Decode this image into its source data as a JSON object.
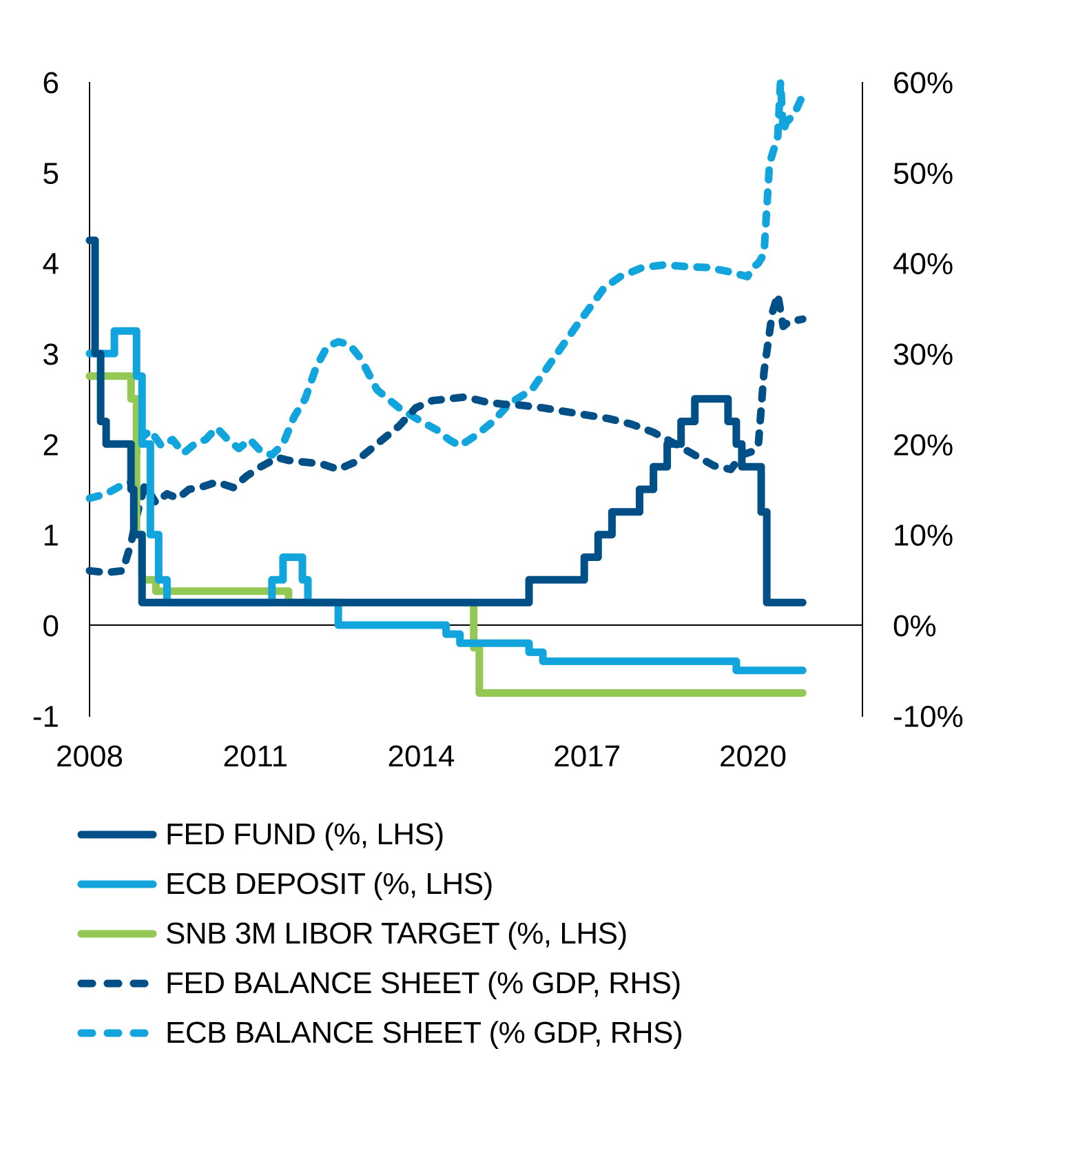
{
  "chart_data": {
    "type": "line",
    "title": "",
    "xlabel": "",
    "ylabel_left": "",
    "ylabel_right": "",
    "x_ticks": [
      "2008",
      "2011",
      "2014",
      "2017",
      "2020"
    ],
    "x_tick_values": [
      2008,
      2011,
      2014,
      2017,
      2020
    ],
    "xlim": [
      2008,
      2022
    ],
    "y_left_ticks": [
      "6",
      "5",
      "4",
      "3",
      "2",
      "1",
      "0",
      "-1"
    ],
    "y_left_tick_values": [
      6,
      5,
      4,
      3,
      2,
      1,
      0,
      -1
    ],
    "ylim_left": [
      -1,
      6
    ],
    "y_right_ticks": [
      "60%",
      "50%",
      "40%",
      "30%",
      "20%",
      "10%",
      "0%",
      "-10%"
    ],
    "y_right_tick_values": [
      60,
      50,
      40,
      30,
      20,
      10,
      0,
      -10
    ],
    "ylim_right": [
      -10,
      60
    ],
    "grid": false,
    "zero_line": true,
    "legend_position": "bottom-left",
    "series": [
      {
        "name": "FED FUND (%, LHS)",
        "axis": "left",
        "style": "solid",
        "step": true,
        "color": "#004f87",
        "x": [
          2008.0,
          2008.1,
          2008.2,
          2008.3,
          2008.35,
          2008.75,
          2008.8,
          2008.95,
          2015.95,
          2016.95,
          2017.2,
          2017.45,
          2017.95,
          2018.2,
          2018.45,
          2018.7,
          2018.95,
          2019.55,
          2019.7,
          2019.8,
          2020.15,
          2020.25,
          2020.9
        ],
        "y": [
          4.25,
          3.0,
          2.25,
          2.0,
          2.0,
          1.5,
          1.0,
          0.25,
          0.5,
          0.75,
          1.0,
          1.25,
          1.5,
          1.75,
          2.0,
          2.25,
          2.5,
          2.25,
          2.0,
          1.75,
          1.25,
          0.25,
          0.25
        ]
      },
      {
        "name": "ECB DEPOSIT (%, LHS)",
        "axis": "left",
        "style": "solid",
        "step": true,
        "color": "#12a4dd",
        "x": [
          2008.0,
          2008.45,
          2008.85,
          2008.95,
          2009.1,
          2009.25,
          2009.4,
          2011.3,
          2011.5,
          2011.85,
          2011.95,
          2012.5,
          2014.45,
          2014.7,
          2015.95,
          2016.2,
          2019.7,
          2020.9
        ],
        "y": [
          3.0,
          3.25,
          2.75,
          2.0,
          1.0,
          0.5,
          0.25,
          0.5,
          0.75,
          0.5,
          0.25,
          0.0,
          -0.1,
          -0.2,
          -0.3,
          -0.4,
          -0.5,
          -0.5
        ]
      },
      {
        "name": "SNB 3M LIBOR TARGET (%, LHS)",
        "axis": "left",
        "style": "solid",
        "step": true,
        "color": "#92c853",
        "x": [
          2008.0,
          2008.75,
          2008.85,
          2008.95,
          2009.2,
          2011.6,
          2014.95,
          2015.05,
          2020.9
        ],
        "y": [
          2.75,
          2.5,
          1.0,
          0.5,
          0.375,
          0.25,
          -0.25,
          -0.75,
          -0.75
        ]
      },
      {
        "name": "FED BALANCE SHEET (% GDP, RHS)",
        "axis": "right",
        "style": "dashed",
        "step": false,
        "color": "#004f87",
        "x": [
          2008.0,
          2008.3,
          2008.6,
          2008.75,
          2008.85,
          2009.0,
          2009.2,
          2009.4,
          2009.6,
          2009.8,
          2010.0,
          2010.3,
          2010.6,
          2010.85,
          2011.1,
          2011.4,
          2011.6,
          2011.9,
          2012.2,
          2012.5,
          2012.8,
          2013.2,
          2013.6,
          2013.9,
          2014.2,
          2014.5,
          2014.8,
          2015.2,
          2015.5,
          2015.8,
          2016.2,
          2016.6,
          2017.0,
          2017.4,
          2017.8,
          2018.2,
          2018.6,
          2019.0,
          2019.3,
          2019.6,
          2019.8,
          2020.0,
          2020.1,
          2020.2,
          2020.35,
          2020.45,
          2020.55,
          2020.65,
          2020.9
        ],
        "y": [
          6.0,
          5.8,
          6.0,
          9.0,
          12.0,
          15.5,
          13.5,
          14.5,
          14.0,
          15.0,
          15.2,
          15.8,
          15.2,
          16.5,
          17.5,
          18.5,
          18.2,
          18.0,
          17.8,
          17.2,
          18.0,
          20.0,
          22.0,
          24.0,
          24.8,
          25.0,
          25.2,
          24.6,
          24.4,
          24.3,
          24.0,
          23.6,
          23.2,
          22.8,
          22.2,
          21.3,
          20.0,
          18.6,
          17.6,
          17.2,
          18.8,
          19.2,
          20.0,
          28.0,
          34.5,
          36.5,
          33.0,
          33.5,
          33.8
        ]
      },
      {
        "name": "ECB BALANCE SHEET (% GDP, RHS)",
        "axis": "right",
        "style": "dashed",
        "step": false,
        "color": "#12a4dd",
        "x": [
          2008.0,
          2008.3,
          2008.6,
          2008.75,
          2008.9,
          2009.1,
          2009.3,
          2009.5,
          2009.7,
          2009.9,
          2010.1,
          2010.3,
          2010.5,
          2010.7,
          2010.9,
          2011.1,
          2011.3,
          2011.5,
          2011.7,
          2011.9,
          2012.1,
          2012.3,
          2012.5,
          2012.7,
          2012.9,
          2013.2,
          2013.6,
          2014.0,
          2014.3,
          2014.5,
          2014.7,
          2015.0,
          2015.3,
          2015.6,
          2016.0,
          2016.4,
          2016.8,
          2017.1,
          2017.3,
          2017.6,
          2018.0,
          2018.4,
          2018.8,
          2019.2,
          2019.6,
          2019.9,
          2020.0,
          2020.1,
          2020.2,
          2020.3,
          2020.45,
          2020.5,
          2020.55,
          2020.6,
          2020.75,
          2020.9
        ],
        "y": [
          14.0,
          14.5,
          15.5,
          15.8,
          20.5,
          21.5,
          19.8,
          20.5,
          19.0,
          20.0,
          20.5,
          21.8,
          20.5,
          19.5,
          20.5,
          19.2,
          18.8,
          20.0,
          23.0,
          25.0,
          28.5,
          30.8,
          31.3,
          31.0,
          29.5,
          26.0,
          24.0,
          22.5,
          21.5,
          20.5,
          19.8,
          21.0,
          22.5,
          24.5,
          26.0,
          29.5,
          33.0,
          35.5,
          37.2,
          38.5,
          39.5,
          39.8,
          39.6,
          39.5,
          39.0,
          38.5,
          39.5,
          40.0,
          41.0,
          51.0,
          54.0,
          60.0,
          54.5,
          55.5,
          56.5,
          58.5
        ]
      }
    ]
  },
  "legend": {
    "items": [
      {
        "label": "FED FUND (%, LHS)",
        "color": "#004f87",
        "style": "solid"
      },
      {
        "label": "ECB DEPOSIT (%, LHS)",
        "color": "#12a4dd",
        "style": "solid"
      },
      {
        "label": "SNB 3M LIBOR TARGET (%, LHS)",
        "color": "#92c853",
        "style": "solid"
      },
      {
        "label": "FED BALANCE SHEET (% GDP, RHS)",
        "color": "#004f87",
        "style": "dashed"
      },
      {
        "label": "ECB BALANCE SHEET (% GDP, RHS)",
        "color": "#12a4dd",
        "style": "dashed"
      }
    ]
  }
}
